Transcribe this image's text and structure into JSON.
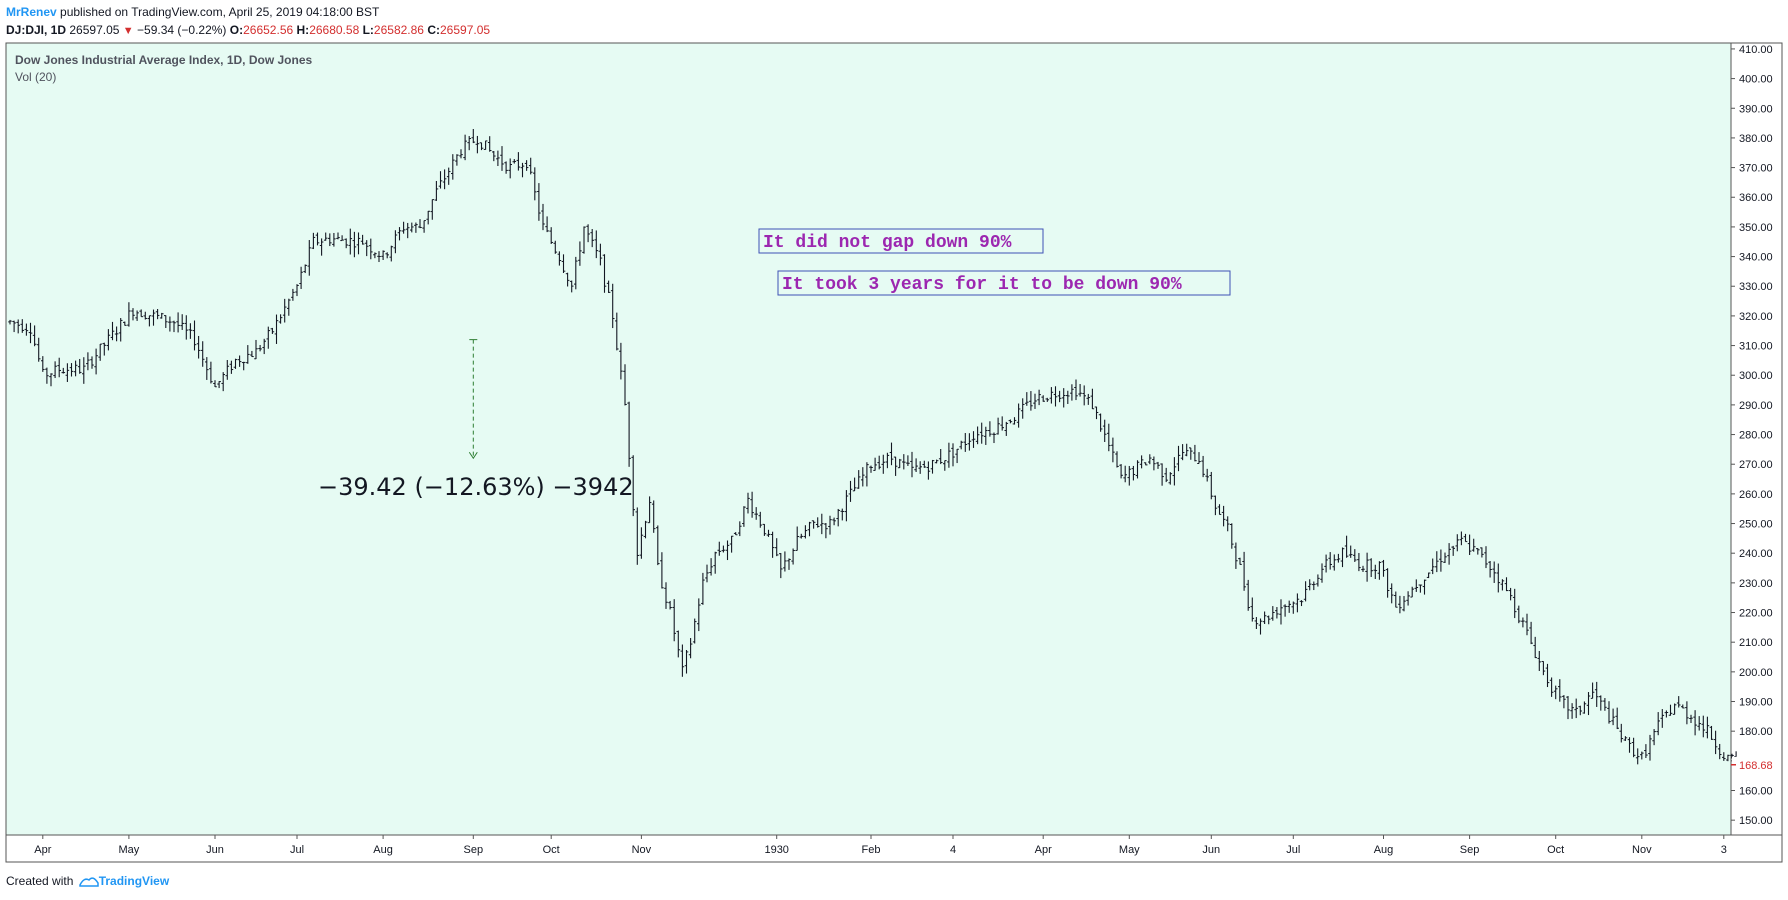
{
  "header": {
    "author": "MrRenev",
    "published_text": " published on TradingView.com, April 25, 2019 04:18:00 BST",
    "symbol": "DJ:DJI, 1D",
    "last": "26597.05",
    "change": "−59.34 (−0.22%)",
    "open_label": "O:",
    "open": "26652.56",
    "high_label": "H:",
    "high": "26680.58",
    "low_label": "L:",
    "low": "26582.86",
    "close_label": "C:",
    "close": "26597.05"
  },
  "footer": {
    "created_with": "Created with",
    "brand": "TradingView"
  },
  "colors": {
    "plot_bg": "#e6fbf3",
    "bar": "#131722",
    "down_red": "#d32f2f",
    "annotation_text": "#9c27b0",
    "annotation_border": "#3f51b5",
    "measure": "#2e7d32",
    "brand": "#2196f3"
  },
  "chart_data": {
    "type": "ohlc",
    "title": "Dow Jones Industrial Average Index, 1D, Dow Jones",
    "indicator": "Vol (20)",
    "ylim": [
      145,
      412
    ],
    "y_ticks": [
      "150.00",
      "160.00",
      "170.00",
      "180.00",
      "190.00",
      "200.00",
      "210.00",
      "220.00",
      "230.00",
      "240.00",
      "250.00",
      "260.00",
      "270.00",
      "280.00",
      "290.00",
      "300.00",
      "310.00",
      "320.00",
      "330.00",
      "340.00",
      "350.00",
      "360.00",
      "370.00",
      "380.00",
      "390.00",
      "400.00",
      "410.00"
    ],
    "last_price": "168.68",
    "x_ticks": [
      "Apr",
      "May",
      "Jun",
      "Jul",
      "Aug",
      "Sep",
      "Oct",
      "Nov",
      "1930",
      "Feb",
      "4",
      "Apr",
      "May",
      "Jun",
      "Jul",
      "Aug",
      "Sep",
      "Oct",
      "Nov",
      "3"
    ],
    "x_tick_bar_index": [
      8,
      29,
      50,
      70,
      91,
      113,
      132,
      154,
      187,
      210,
      230,
      252,
      273,
      293,
      313,
      335,
      356,
      377,
      398,
      418
    ],
    "price_path": [
      [
        0,
        318
      ],
      [
        5,
        316
      ],
      [
        8,
        300
      ],
      [
        12,
        302
      ],
      [
        18,
        302
      ],
      [
        24,
        312
      ],
      [
        30,
        322
      ],
      [
        35,
        320
      ],
      [
        40,
        318
      ],
      [
        45,
        312
      ],
      [
        50,
        296
      ],
      [
        55,
        305
      ],
      [
        60,
        308
      ],
      [
        64,
        315
      ],
      [
        70,
        330
      ],
      [
        74,
        345
      ],
      [
        78,
        346
      ],
      [
        86,
        345
      ],
      [
        91,
        340
      ],
      [
        96,
        350
      ],
      [
        100,
        350
      ],
      [
        104,
        362
      ],
      [
        110,
        376
      ],
      [
        114,
        380
      ],
      [
        118,
        374
      ],
      [
        122,
        370
      ],
      [
        126,
        372
      ],
      [
        130,
        350
      ],
      [
        134,
        340
      ],
      [
        137,
        330
      ],
      [
        140,
        350
      ],
      [
        144,
        338
      ],
      [
        147,
        320
      ],
      [
        150,
        290
      ],
      [
        153,
        240
      ],
      [
        156,
        258
      ],
      [
        158,
        235
      ],
      [
        161,
        220
      ],
      [
        164,
        200
      ],
      [
        166,
        210
      ],
      [
        169,
        230
      ],
      [
        172,
        240
      ],
      [
        176,
        244
      ],
      [
        180,
        258
      ],
      [
        184,
        248
      ],
      [
        188,
        234
      ],
      [
        192,
        244
      ],
      [
        196,
        250
      ],
      [
        200,
        250
      ],
      [
        205,
        260
      ],
      [
        210,
        270
      ],
      [
        215,
        272
      ],
      [
        220,
        268
      ],
      [
        225,
        270
      ],
      [
        230,
        274
      ],
      [
        235,
        280
      ],
      [
        240,
        282
      ],
      [
        245,
        286
      ],
      [
        250,
        292
      ],
      [
        255,
        294
      ],
      [
        260,
        295
      ],
      [
        264,
        290
      ],
      [
        268,
        276
      ],
      [
        271,
        265
      ],
      [
        274,
        268
      ],
      [
        278,
        272
      ],
      [
        282,
        266
      ],
      [
        286,
        274
      ],
      [
        290,
        272
      ],
      [
        294,
        256
      ],
      [
        297,
        248
      ],
      [
        300,
        235
      ],
      [
        303,
        218
      ],
      [
        306,
        218
      ],
      [
        310,
        222
      ],
      [
        315,
        225
      ],
      [
        320,
        235
      ],
      [
        325,
        240
      ],
      [
        330,
        236
      ],
      [
        334,
        236
      ],
      [
        338,
        222
      ],
      [
        342,
        228
      ],
      [
        346,
        234
      ],
      [
        350,
        240
      ],
      [
        354,
        244
      ],
      [
        358,
        240
      ],
      [
        362,
        234
      ],
      [
        366,
        225
      ],
      [
        370,
        213
      ],
      [
        374,
        200
      ],
      [
        378,
        190
      ],
      [
        382,
        186
      ],
      [
        386,
        193
      ],
      [
        390,
        185
      ],
      [
        394,
        176
      ],
      [
        398,
        171
      ],
      [
        402,
        182
      ],
      [
        406,
        189
      ],
      [
        410,
        185
      ],
      [
        414,
        180
      ],
      [
        418,
        172
      ],
      [
        421,
        169
      ]
    ],
    "n_bars": 422,
    "annotations": [
      {
        "text": "It did not gap down 90%"
      },
      {
        "text": "It took 3 years for it to be down 90%"
      }
    ],
    "measure": {
      "bar_index": 113,
      "from": 312,
      "to": 272,
      "label": "−39.42 (−12.63%) −3942"
    }
  }
}
